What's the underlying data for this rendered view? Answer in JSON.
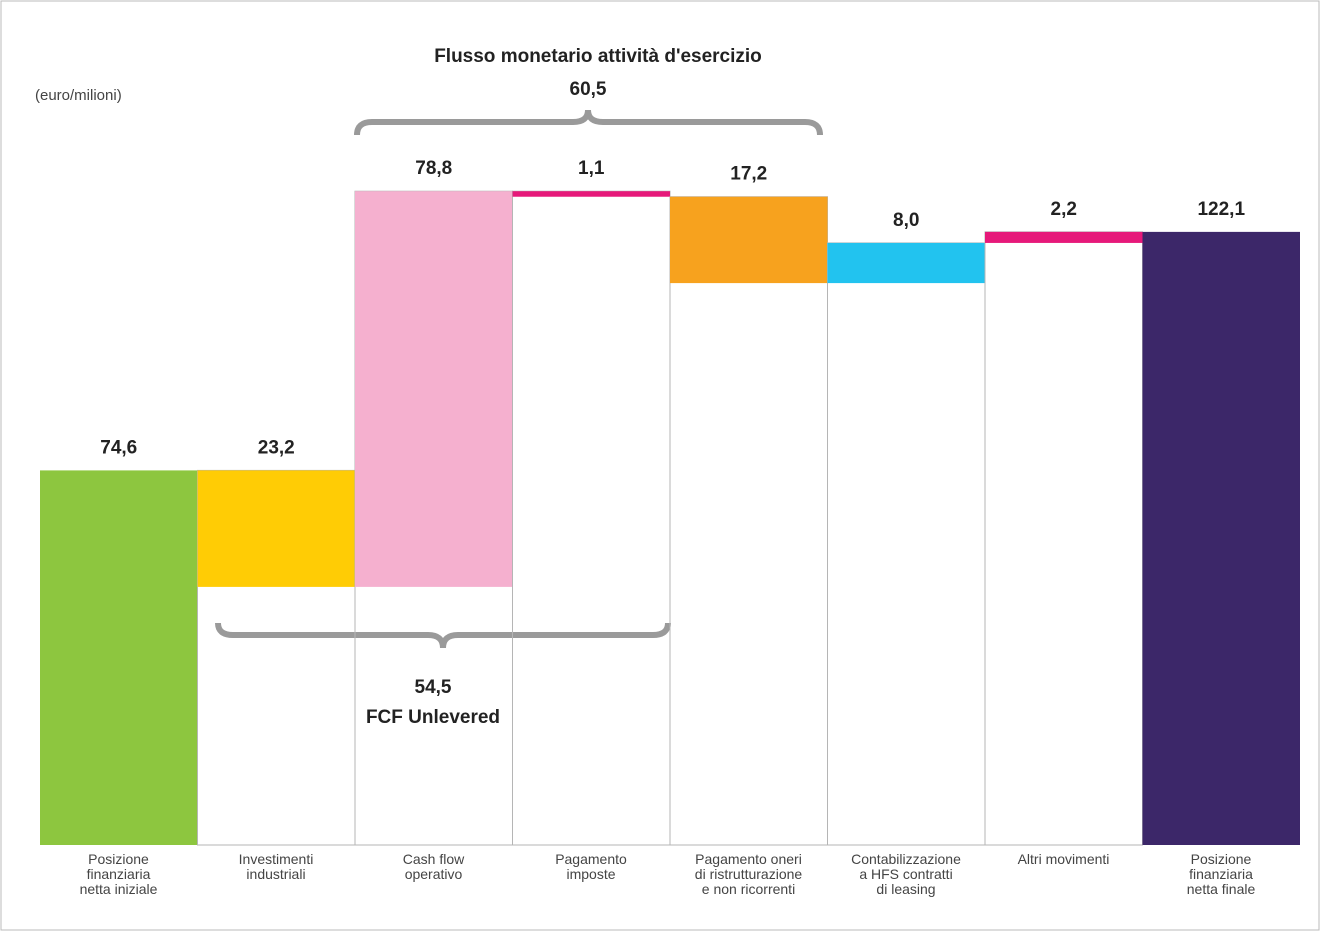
{
  "chart_data": {
    "type": "waterfall",
    "title": "Flusso monetario attività d'esercizio",
    "unit_label": "(euro/milioni)",
    "categories": [
      "Posizione\nfinanziaria\nnetta iniziale",
      "Investimenti\nindustriali",
      "Cash flow\noperativo",
      "Pagamento\nimposte",
      "Pagamento oneri\ndi ristrutturazione\ne non ricorrenti",
      "Contabilizzazione\na HFS contratti\ndi leasing",
      "Altri movimenti",
      "Posizione\nfinanziaria\nnetta finale"
    ],
    "values": [
      74.6,
      23.2,
      78.8,
      1.1,
      17.2,
      8.0,
      2.2,
      122.1
    ],
    "value_labels": [
      "74,6",
      "23,2",
      "78,8",
      "1,1",
      "17,2",
      "8,0",
      "2,2",
      "122,1"
    ],
    "measures": [
      "absolute",
      "decrease",
      "increase",
      "decrease",
      "decrease",
      "increase",
      "increase",
      "absolute"
    ],
    "colors": [
      "#8dc63f",
      "#ffcc05",
      "#f5b0cf",
      "#e6197a",
      "#f7a21e",
      "#22c3ef",
      "#e6197a",
      "#3c2769"
    ],
    "ylim": [
      0,
      140
    ],
    "annotations": [
      {
        "text": "60,5"
      },
      {
        "text": "54,5",
        "subtext": "FCF Unlevered"
      }
    ]
  }
}
